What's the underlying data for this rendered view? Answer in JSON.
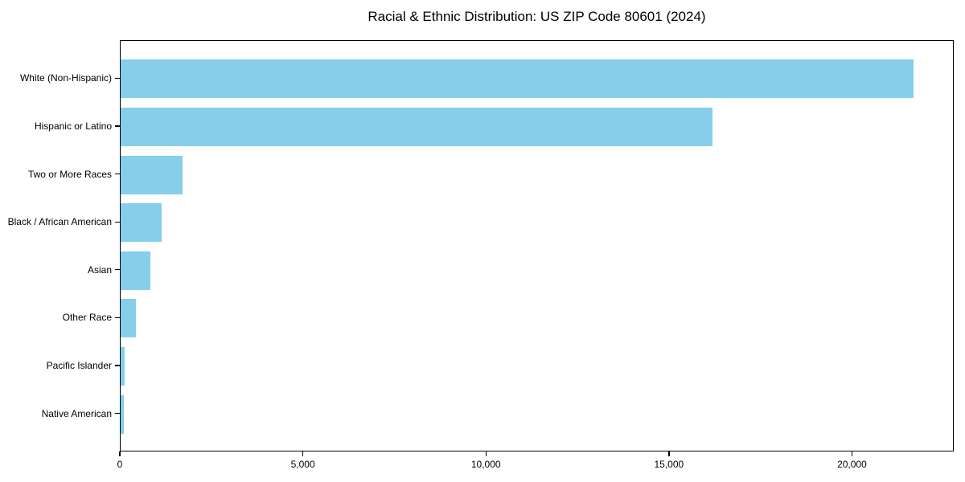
{
  "chart_data": {
    "type": "bar",
    "orientation": "horizontal",
    "title": "Racial & Ethnic Distribution: US ZIP Code 80601 (2024)",
    "categories": [
      "White (Non-Hispanic)",
      "Hispanic or Latino",
      "Two or More Races",
      "Black / African American",
      "Asian",
      "Other Race",
      "Pacific Islander",
      "Native American"
    ],
    "values": [
      21700,
      16200,
      1690,
      1120,
      815,
      420,
      100,
      80
    ],
    "xlabel": "",
    "ylabel": "",
    "xlim": [
      0,
      22780
    ],
    "x_ticks": [
      {
        "value": 0,
        "label": "0"
      },
      {
        "value": 5000,
        "label": "5,000"
      },
      {
        "value": 10000,
        "label": "10,000"
      },
      {
        "value": 15000,
        "label": "15,000"
      },
      {
        "value": 20000,
        "label": "20,000"
      }
    ],
    "bar_color": "#87CEEB",
    "grid": false,
    "legend": false,
    "background_color": "#ffffff",
    "text_color": "#000000"
  }
}
